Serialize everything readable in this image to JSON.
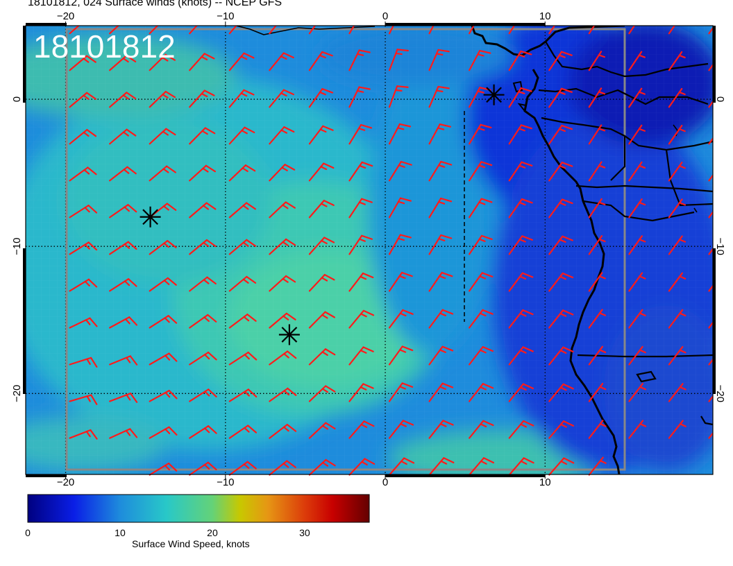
{
  "title": "18101812, 024 Surface winds (knots) -- NCEP GFS",
  "timestamp_overlay": "18101812",
  "axes": {
    "lon_ticks": [
      -20,
      -10,
      0,
      10
    ],
    "lat_ticks": [
      0,
      -10,
      -20
    ],
    "lon_tick_labels": [
      "−20",
      "−10",
      "0",
      "10"
    ],
    "lat_tick_labels": [
      "0",
      "−10",
      "−20"
    ],
    "lon_range": [
      -22.5,
      20.5
    ],
    "lat_range": [
      -25.5,
      5.0
    ]
  },
  "colorbar": {
    "title": "Surface Wind Speed, knots",
    "tick_values": [
      0,
      10,
      20,
      30
    ],
    "tick_labels": [
      "0",
      "10",
      "20",
      "30"
    ],
    "range": [
      0,
      37
    ],
    "stops": [
      {
        "v": 0,
        "c": "#000080"
      },
      {
        "v": 5,
        "c": "#0a1ee6"
      },
      {
        "v": 10,
        "c": "#1e8cdc"
      },
      {
        "v": 15,
        "c": "#28c8c8"
      },
      {
        "v": 20,
        "c": "#64d278"
      },
      {
        "v": 23,
        "c": "#c8c800"
      },
      {
        "v": 26,
        "c": "#e69614"
      },
      {
        "v": 30,
        "c": "#dc3c0a"
      },
      {
        "v": 33,
        "c": "#c80000"
      },
      {
        "v": 37,
        "c": "#640000"
      }
    ]
  },
  "colors": {
    "ocean_base": "#1e8cdc",
    "barb": "#ff1a1a",
    "coast": "#000000",
    "grid": "#000000",
    "box": "#888888"
  },
  "markers": [
    {
      "name": "marker-1",
      "lon": -14.7,
      "lat": -8.0
    },
    {
      "name": "marker-2",
      "lon": -6.0,
      "lat": -16.0
    },
    {
      "name": "marker-3",
      "lon": 6.8,
      "lat": 0.3
    }
  ],
  "wind_field": {
    "description_units": "knots",
    "samples": [
      {
        "lon": -20,
        "lat": 0,
        "u": -12,
        "v": -10
      },
      {
        "lon": -10,
        "lat": 0,
        "u": -10,
        "v": -12
      },
      {
        "lon": 0,
        "lat": 0,
        "u": -4,
        "v": -12
      },
      {
        "lon": -20,
        "lat": -10,
        "u": -13,
        "v": -8
      },
      {
        "lon": -10,
        "lat": -10,
        "u": -12,
        "v": -10
      },
      {
        "lon": 0,
        "lat": -10,
        "u": -7,
        "v": -13
      },
      {
        "lon": -20,
        "lat": -20,
        "u": -15,
        "v": -4
      },
      {
        "lon": -10,
        "lat": -20,
        "u": -13,
        "v": -8
      },
      {
        "lon": 0,
        "lat": -20,
        "u": -9,
        "v": -13
      }
    ]
  }
}
